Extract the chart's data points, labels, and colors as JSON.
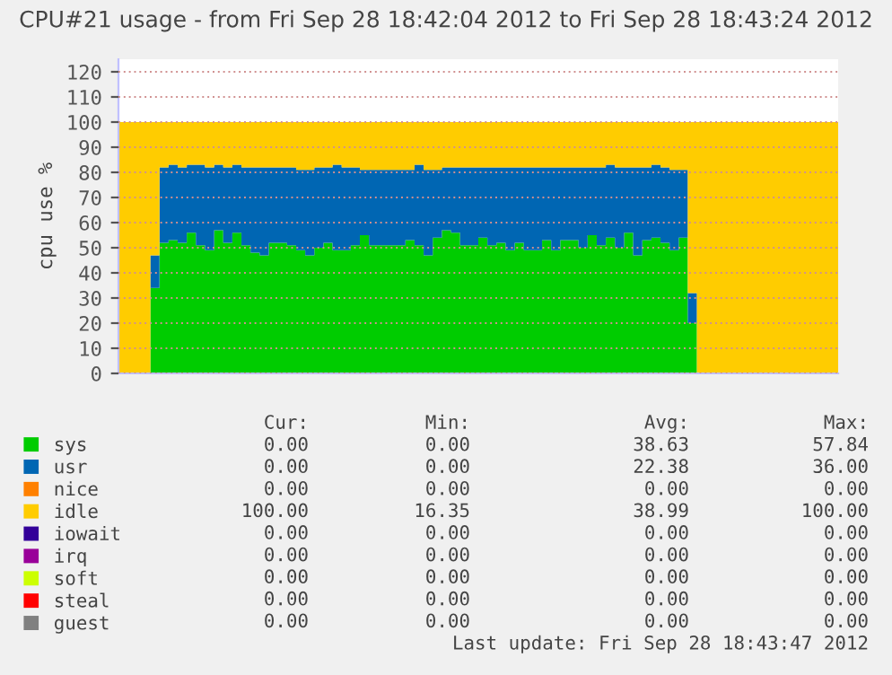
{
  "chart_data": {
    "type": "area",
    "stacked": true,
    "title": "CPU#21 usage - from Fri Sep 28 18:42:04 2012 to Fri Sep 28 18:43:24 2012",
    "ylabel": "cpu use %",
    "categories": [
      null,
      null,
      null,
      null,
      null,
      null,
      null,
      null,
      null,
      null,
      null,
      null,
      null,
      null,
      null,
      null,
      null,
      null,
      null,
      null,
      null,
      null,
      null,
      null,
      null,
      null,
      null,
      null,
      null,
      null,
      null,
      null,
      null,
      null,
      null,
      null,
      null,
      null,
      null,
      null,
      null,
      null,
      null,
      null,
      null,
      null,
      null,
      null,
      null,
      null,
      null,
      null,
      null,
      null,
      null,
      null,
      null,
      null,
      null,
      null,
      null,
      null,
      null,
      null,
      null,
      null,
      null,
      null,
      null,
      null,
      null,
      null,
      null,
      null,
      null,
      null,
      null,
      null,
      null,
      null
    ],
    "ylim": [
      0,
      125
    ],
    "yticks": [
      0,
      10,
      20,
      30,
      40,
      50,
      60,
      70,
      80,
      90,
      100,
      110,
      120
    ],
    "grid": "y",
    "legend": "bottom left",
    "series": [
      {
        "name": "sys",
        "color": "#00cc00",
        "values": [
          0,
          0,
          0,
          0,
          34,
          52,
          53,
          52,
          56,
          51,
          49,
          57,
          52,
          56,
          51,
          48,
          47,
          52,
          52,
          51,
          49,
          47,
          50,
          52,
          49,
          49,
          51,
          55,
          51,
          51,
          51,
          51,
          53,
          51,
          47,
          54,
          57,
          56,
          51,
          51,
          54,
          51,
          52,
          49,
          52,
          49,
          49,
          53,
          49,
          53,
          53,
          50,
          55,
          51,
          54,
          50,
          56,
          47,
          53,
          54,
          52,
          49,
          54,
          20,
          0,
          0,
          0,
          0,
          0,
          0,
          0,
          0,
          0,
          0,
          0,
          0,
          0,
          0,
          0,
          0
        ]
      },
      {
        "name": "usr",
        "color": "#0066b3",
        "values": [
          0,
          0,
          0,
          0,
          13,
          30,
          30,
          30,
          27,
          32,
          33,
          26,
          30,
          27,
          31,
          34,
          35,
          30,
          30,
          31,
          32,
          34,
          32,
          30,
          34,
          33,
          31,
          26,
          30,
          30,
          30,
          30,
          28,
          32,
          34,
          27,
          25,
          26,
          31,
          31,
          28,
          31,
          30,
          33,
          30,
          33,
          33,
          29,
          33,
          29,
          29,
          32,
          27,
          31,
          29,
          32,
          26,
          35,
          29,
          29,
          30,
          32,
          27,
          12,
          0,
          0,
          0,
          0,
          0,
          0,
          0,
          0,
          0,
          0,
          0,
          0,
          0,
          0,
          0,
          0
        ]
      },
      {
        "name": "nice",
        "color": "#ff8000",
        "values": [
          null,
          null,
          null,
          null,
          null,
          null,
          null,
          null,
          null,
          null,
          null,
          null,
          null,
          null,
          null,
          null,
          null,
          null,
          null,
          null,
          null,
          null,
          null,
          null,
          null,
          null,
          null,
          null,
          null,
          null,
          null,
          null,
          null,
          null,
          null,
          null,
          null,
          null,
          null,
          null,
          null,
          null,
          null,
          null,
          null,
          null,
          null,
          null,
          null,
          null,
          null,
          null,
          null,
          null,
          null,
          null,
          null,
          null,
          null,
          null,
          null,
          null,
          null,
          null,
          null,
          null,
          null,
          null,
          null,
          null,
          null,
          null,
          null,
          null,
          null,
          null,
          null,
          null,
          null,
          null
        ]
      },
      {
        "name": "idle",
        "color": "#ffcc00",
        "values": [
          100,
          100,
          100,
          100,
          53,
          18,
          17,
          18,
          17,
          17,
          18,
          17,
          18,
          17,
          18,
          18,
          18,
          18,
          18,
          18,
          19,
          19,
          18,
          18,
          17,
          18,
          18,
          19,
          19,
          19,
          19,
          19,
          19,
          17,
          19,
          19,
          18,
          18,
          18,
          18,
          18,
          18,
          18,
          18,
          18,
          18,
          18,
          18,
          18,
          18,
          18,
          18,
          18,
          18,
          17,
          18,
          18,
          18,
          18,
          17,
          18,
          19,
          19,
          68,
          100,
          100,
          100,
          100,
          100,
          100,
          100,
          100,
          100,
          100,
          100,
          100,
          100,
          100,
          100,
          100
        ]
      },
      {
        "name": "iowait",
        "color": "#330099",
        "values": [
          null,
          null,
          null,
          null,
          null,
          null,
          null,
          null,
          null,
          null,
          null,
          null,
          null,
          null,
          null,
          null,
          null,
          null,
          null,
          null,
          null,
          null,
          null,
          null,
          null,
          null,
          null,
          null,
          null,
          null,
          null,
          null,
          null,
          null,
          null,
          null,
          null,
          null,
          null,
          null,
          null,
          null,
          null,
          null,
          null,
          null,
          null,
          null,
          null,
          null,
          null,
          null,
          null,
          null,
          null,
          null,
          null,
          null,
          null,
          null,
          null,
          null,
          null,
          null,
          null,
          null,
          null,
          null,
          null,
          null,
          null,
          null,
          null,
          null,
          null,
          null,
          null,
          null,
          null,
          null
        ]
      },
      {
        "name": "irq",
        "color": "#990099",
        "values": [
          null,
          null,
          null,
          null,
          null,
          null,
          null,
          null,
          null,
          null,
          null,
          null,
          null,
          null,
          null,
          null,
          null,
          null,
          null,
          null,
          null,
          null,
          null,
          null,
          null,
          null,
          null,
          null,
          null,
          null,
          null,
          null,
          null,
          null,
          null,
          null,
          null,
          null,
          null,
          null,
          null,
          null,
          null,
          null,
          null,
          null,
          null,
          null,
          null,
          null,
          null,
          null,
          null,
          null,
          null,
          null,
          null,
          null,
          null,
          null,
          null,
          null,
          null,
          null,
          null,
          null,
          null,
          null,
          null,
          null,
          null,
          null,
          null,
          null,
          null,
          null,
          null,
          null,
          null,
          null
        ]
      },
      {
        "name": "soft",
        "color": "#ccff00",
        "values": [
          null,
          null,
          null,
          null,
          null,
          null,
          null,
          null,
          null,
          null,
          null,
          null,
          null,
          null,
          null,
          null,
          null,
          null,
          null,
          null,
          null,
          null,
          null,
          null,
          null,
          null,
          null,
          null,
          null,
          null,
          null,
          null,
          null,
          null,
          null,
          null,
          null,
          null,
          null,
          null,
          null,
          null,
          null,
          null,
          null,
          null,
          null,
          null,
          null,
          null,
          null,
          null,
          null,
          null,
          null,
          null,
          null,
          null,
          null,
          null,
          null,
          null,
          null,
          null,
          null,
          null,
          null,
          null,
          null,
          null,
          null,
          null,
          null,
          null,
          null,
          null,
          null,
          null,
          null,
          null
        ]
      },
      {
        "name": "steal",
        "color": "#ff0000",
        "values": [
          null,
          null,
          null,
          null,
          null,
          null,
          null,
          null,
          null,
          null,
          null,
          null,
          null,
          null,
          null,
          null,
          null,
          null,
          null,
          null,
          null,
          null,
          null,
          null,
          null,
          null,
          null,
          null,
          null,
          null,
          null,
          null,
          null,
          null,
          null,
          null,
          null,
          null,
          null,
          null,
          null,
          null,
          null,
          null,
          null,
          null,
          null,
          null,
          null,
          null,
          null,
          null,
          null,
          null,
          null,
          null,
          null,
          null,
          null,
          null,
          null,
          null,
          null,
          null,
          null,
          null,
          null,
          null,
          null,
          null,
          null,
          null,
          null,
          null,
          null,
          null,
          null,
          null,
          null,
          null
        ]
      },
      {
        "name": "guest",
        "color": "#808080",
        "values": [
          null,
          null,
          null,
          null,
          null,
          null,
          null,
          null,
          null,
          null,
          null,
          null,
          null,
          null,
          null,
          null,
          null,
          null,
          null,
          null,
          null,
          null,
          null,
          null,
          null,
          null,
          null,
          null,
          null,
          null,
          null,
          null,
          null,
          null,
          null,
          null,
          null,
          null,
          null,
          null,
          null,
          null,
          null,
          null,
          null,
          null,
          null,
          null,
          null,
          null,
          null,
          null,
          null,
          null,
          null,
          null,
          null,
          null,
          null,
          null,
          null,
          null,
          null,
          null,
          null,
          null,
          null,
          null,
          null,
          null,
          null,
          null,
          null,
          null,
          null,
          null,
          null,
          null,
          null,
          null
        ]
      }
    ],
    "annotations": [
      "Cur:",
      "Min:",
      "Avg:",
      "Max:",
      "0.00",
      "0.00",
      "38.63",
      "57.84",
      "0.00",
      "0.00",
      "22.38",
      "36.00",
      "0.00",
      "0.00",
      "0.00",
      "0.00",
      "100.00",
      "16.35",
      "38.99",
      "100.00",
      "0.00",
      "0.00",
      "0.00",
      "0.00",
      "0.00",
      "0.00",
      "0.00",
      "0.00",
      "0.00",
      "0.00",
      "0.00",
      "0.00",
      "0.00",
      "0.00",
      "0.00",
      "0.00",
      "0.00",
      "0.00",
      "0.00",
      "0.00",
      "Last update: Fri Sep 28 18:43:47 2012"
    ]
  }
}
